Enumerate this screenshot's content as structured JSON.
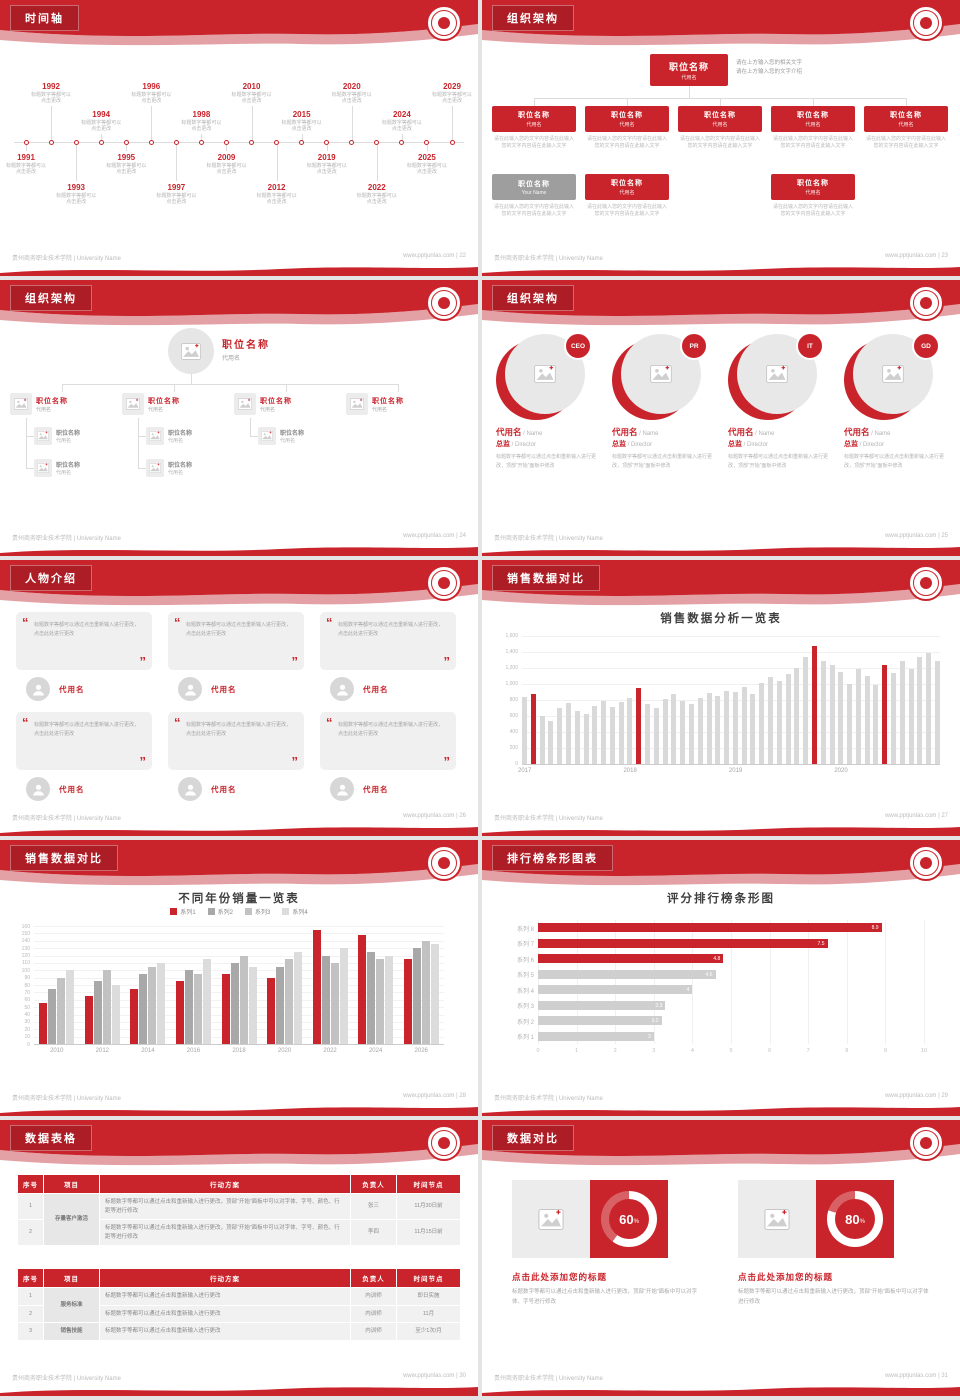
{
  "theme": {
    "red": "#c9242b",
    "red_dark": "#ad1d25",
    "red_light": "#e3a0a5",
    "bar_gray": "#d9d9d9",
    "text_gray": "#9b9b9b"
  },
  "footer": {
    "school": "贵州商务职业技术学院 | University Name",
    "site": "www.pptjunlas.com"
  },
  "slides": [
    {
      "title": "时间轴",
      "page": "22",
      "footer_right": "www.pptjunlas.com | 22"
    },
    {
      "title": "组织架构",
      "page": "23",
      "footer_right": "www.pptjunlas.com | 23"
    },
    {
      "title": "组织架构",
      "page": "24",
      "footer_right": "www.pptjunlas.com | 24"
    },
    {
      "title": "组织架构",
      "page": "25",
      "footer_right": "www.pptjunlas.com | 25"
    },
    {
      "title": "人物介绍",
      "page": "26",
      "footer_right": "www.pptjunlas.com | 26"
    },
    {
      "title": "销售数据对比",
      "page": "27",
      "footer_right": "www.pptjunlas.com | 27"
    },
    {
      "title": "销售数据对比",
      "page": "28",
      "footer_right": "www.pptjunlas.com | 28"
    },
    {
      "title": "排行榜条形图表",
      "page": "29",
      "footer_right": "www.pptjunlas.com | 29"
    },
    {
      "title": "数据表格",
      "page": "30",
      "footer_right": "www.pptjunlas.com | 30"
    },
    {
      "title": "数据对比",
      "page": "31",
      "footer_right": "www.pptjunlas.com | 31"
    }
  ],
  "timeline": {
    "caption": "标题数字等都可以点击更改",
    "years": [
      {
        "y": "1991",
        "side": "bottom",
        "level": 1
      },
      {
        "y": "1992",
        "side": "top",
        "level": 1
      },
      {
        "y": "1993",
        "side": "bottom",
        "level": 2
      },
      {
        "y": "1994",
        "side": "top",
        "level": 2
      },
      {
        "y": "1995",
        "side": "bottom",
        "level": 1
      },
      {
        "y": "1996",
        "side": "top",
        "level": 1
      },
      {
        "y": "1997",
        "side": "bottom",
        "level": 2
      },
      {
        "y": "1998",
        "side": "top",
        "level": 2
      },
      {
        "y": "2009",
        "side": "bottom",
        "level": 1
      },
      {
        "y": "2010",
        "side": "top",
        "level": 1
      },
      {
        "y": "2012",
        "side": "bottom",
        "level": 2
      },
      {
        "y": "2015",
        "side": "top",
        "level": 2
      },
      {
        "y": "2019",
        "side": "bottom",
        "level": 1
      },
      {
        "y": "2020",
        "side": "top",
        "level": 1
      },
      {
        "y": "2022",
        "side": "bottom",
        "level": 2
      },
      {
        "y": "2024",
        "side": "top",
        "level": 2
      },
      {
        "y": "2025",
        "side": "bottom",
        "level": 1
      },
      {
        "y": "2029",
        "side": "top",
        "level": 1
      }
    ]
  },
  "org_top": {
    "root": {
      "name": "职位名称",
      "sub": "代用名"
    },
    "root_note": [
      "请在上方输入您的相关文字",
      "请在上方输入您的文字介绍"
    ],
    "caption": "请在此输入您的文字内容请在此输入您的文字内容请在此输入文字",
    "row2": [
      {
        "name": "职位名称",
        "sub": "代用名"
      },
      {
        "name": "职位名称",
        "sub": "代用名"
      },
      {
        "name": "职位名称",
        "sub": "代用名"
      },
      {
        "name": "职位名称",
        "sub": "代用名"
      },
      {
        "name": "职位名称",
        "sub": "代用名"
      }
    ],
    "row3": [
      {
        "name": "职位名称",
        "sub": "Your Name",
        "style": "gray"
      },
      {
        "name": "职位名称",
        "sub": "代用名",
        "style": "red"
      },
      {
        "name": "职位名称",
        "sub": "代用名",
        "style": "red"
      }
    ]
  },
  "org_tree": {
    "root": {
      "name": "职位名称",
      "sub": "代用名"
    },
    "mains": [
      {
        "name": "职位名称",
        "sub": "代用名"
      },
      {
        "name": "职位名称",
        "sub": "代用名"
      },
      {
        "name": "职位名称",
        "sub": "代用名"
      },
      {
        "name": "职位名称",
        "sub": "代用名"
      }
    ],
    "subs": [
      [
        {
          "name": "职位名称",
          "sub": "代用名"
        },
        {
          "name": "职位名称",
          "sub": "代用名"
        }
      ],
      [
        {
          "name": "职位名称",
          "sub": "代用名"
        },
        {
          "name": "职位名称",
          "sub": "代用名"
        }
      ],
      [
        {
          "name": "职位名称",
          "sub": "代用名"
        }
      ],
      []
    ]
  },
  "org_circles": {
    "desc": "标题数字等都可以通过点击和重新输入进行更改，顶部“开始”面板中修改",
    "items": [
      {
        "badge": "CEO",
        "name": "代用名",
        "name_en": "/ Name",
        "role": "总监",
        "role_en": "/ Director"
      },
      {
        "badge": "PR",
        "name": "代用名",
        "name_en": "/ Name",
        "role": "总监",
        "role_en": "/ Director"
      },
      {
        "badge": "IT",
        "name": "代用名",
        "name_en": "/ Name",
        "role": "总监",
        "role_en": "/ Director"
      },
      {
        "badge": "GD",
        "name": "代用名",
        "name_en": "/ Name",
        "role": "总监",
        "role_en": "/ Director"
      }
    ]
  },
  "people": {
    "open_quote": "“",
    "close_quote": "”",
    "cards": [
      {
        "quote": "标题数字等都可以通过点击重新输入进行更改，点击此处进行更改",
        "name": "代用名"
      },
      {
        "quote": "标题数字等都可以通过点击重新输入进行更改，点击此处进行更改",
        "name": "代用名"
      },
      {
        "quote": "标题数字等都可以通过点击重新输入进行更改，点击此处进行更改",
        "name": "代用名"
      },
      {
        "quote": "标题数字等都可以通过点击重新输入进行更改，点击此处进行更改",
        "name": "代用名"
      },
      {
        "quote": "标题数字等都可以通过点击重新输入进行更改，点击此处进行更改",
        "name": "代用名"
      },
      {
        "quote": "标题数字等都可以通过点击重新输入进行更改，点击此处进行更改",
        "name": "代用名"
      }
    ]
  },
  "tables": {
    "t1": {
      "headers": [
        "序号",
        "项目",
        "行动方案",
        "负责人",
        "时间节点"
      ],
      "rows": [
        [
          {
            "t": "1"
          },
          {
            "t": "存量客户激活",
            "rs": 2,
            "cls": "proj"
          },
          {
            "t": "标题数字等都可以通过点击和重新输入进行更改，顶部“开始”面板中可以对字体、字号、颜色、行距等进行修改",
            "cls": "left"
          },
          {
            "t": "张三"
          },
          {
            "t": "11月30日前"
          }
        ],
        [
          {
            "t": "2"
          },
          {
            "t": "标题数字等都可以通过点击和重新输入进行更改，顶部“开始”面板中可以对字体、字号、颜色、行距等进行修改",
            "cls": "left"
          },
          {
            "t": "李四"
          },
          {
            "t": "11月15日前"
          }
        ]
      ]
    },
    "t2": {
      "headers": [
        "序号",
        "项目",
        "行动方案",
        "负责人",
        "时间节点"
      ],
      "rows": [
        [
          {
            "t": "1"
          },
          {
            "t": "服务标准",
            "rs": 2,
            "cls": "proj"
          },
          {
            "t": "标题数字等都可以通过点击和重新输入进行更改",
            "cls": "left"
          },
          {
            "t": "内训师"
          },
          {
            "t": "即日实施"
          }
        ],
        [
          {
            "t": "2"
          },
          {
            "t": "标题数字等都可以通过点击和重新输入进行更改",
            "cls": "left"
          },
          {
            "t": "内训师"
          },
          {
            "t": "11月"
          }
        ],
        [
          {
            "t": "3"
          },
          {
            "t": "销售技能",
            "cls": "proj"
          },
          {
            "t": "标题数字等都可以通过点击和重新输入进行更改",
            "cls": "left"
          },
          {
            "t": "内训师"
          },
          {
            "t": "至少1次/月"
          }
        ]
      ]
    }
  },
  "compare": {
    "items": [
      {
        "percent": 60,
        "title": "点击此处添加您的标题",
        "desc": "标题数字等都可以通过点击和重新输入进行更改，顶部“开始”面板中可以对字体、字号进行修改"
      },
      {
        "percent": 80,
        "title": "点击此处添加您的标题",
        "desc": "标题数字等都可以通过点击和重新输入进行更改，顶部“开始”面板中可以对字体进行修改"
      }
    ]
  },
  "chart_data": [
    {
      "type": "bar",
      "title": "销售数据分析一览表",
      "ylim": [
        0,
        1600
      ],
      "ytick": 200,
      "x_groups": [
        "2017",
        "2018",
        "2019",
        "2020"
      ],
      "group_size": 12,
      "values": [
        840,
        880,
        600,
        540,
        700,
        760,
        660,
        620,
        730,
        790,
        710,
        770,
        820,
        950,
        750,
        700,
        810,
        870,
        790,
        750,
        830,
        890,
        850,
        910,
        900,
        960,
        880,
        1010,
        1090,
        1040,
        1130,
        1200,
        1340,
        1480,
        1290,
        1240,
        1150,
        1000,
        1190,
        1100,
        990,
        1240,
        1140,
        1290,
        1190,
        1340,
        1390,
        1290
      ],
      "red_indices": [
        1,
        13,
        33,
        41
      ],
      "bar_color": "#d9d9d9",
      "accent": "#c9242b",
      "grid": true
    },
    {
      "type": "bar",
      "title": "不同年份销量一览表",
      "ylim": [
        0,
        160
      ],
      "ytick": 10,
      "categories": [
        "2010",
        "2012",
        "2014",
        "2016",
        "2018",
        "2020",
        "2022",
        "2024",
        "2026"
      ],
      "series": [
        {
          "name": "系列1",
          "color": "#c9242b",
          "values": [
            55,
            65,
            75,
            85,
            95,
            90,
            155,
            148,
            115
          ]
        },
        {
          "name": "系列2",
          "color": "#a8a8a8",
          "values": [
            75,
            85,
            95,
            100,
            110,
            105,
            120,
            125,
            130
          ]
        },
        {
          "name": "系列3",
          "color": "#c2c2c2",
          "values": [
            90,
            100,
            105,
            95,
            120,
            115,
            110,
            115,
            140
          ]
        },
        {
          "name": "系列4",
          "color": "#dcdcdc",
          "values": [
            100,
            80,
            110,
            115,
            105,
            125,
            130,
            120,
            135
          ]
        }
      ],
      "legend_position": "top",
      "grid": true
    },
    {
      "type": "bar_horizontal",
      "title": "评分排行榜条形图",
      "xlim": [
        0,
        10
      ],
      "xtick": 1,
      "categories": [
        "系列 8",
        "系列 7",
        "系列 6",
        "系列 5",
        "系列 4",
        "系列 3",
        "系列 2",
        "系列 1"
      ],
      "values": [
        8.9,
        7.5,
        4.8,
        4.6,
        4,
        3.3,
        3.2,
        3
      ],
      "colors": [
        "#c9242b",
        "#c9242b",
        "#c9242b",
        "#cfcfcf",
        "#cfcfcf",
        "#cfcfcf",
        "#cfcfcf",
        "#cfcfcf"
      ],
      "grid": true
    },
    {
      "type": "pie",
      "subtype": "donut",
      "items": [
        {
          "label": "点击此处添加您的标题",
          "percent": 60
        },
        {
          "label": "点击此处添加您的标题",
          "percent": 80
        }
      ]
    }
  ]
}
